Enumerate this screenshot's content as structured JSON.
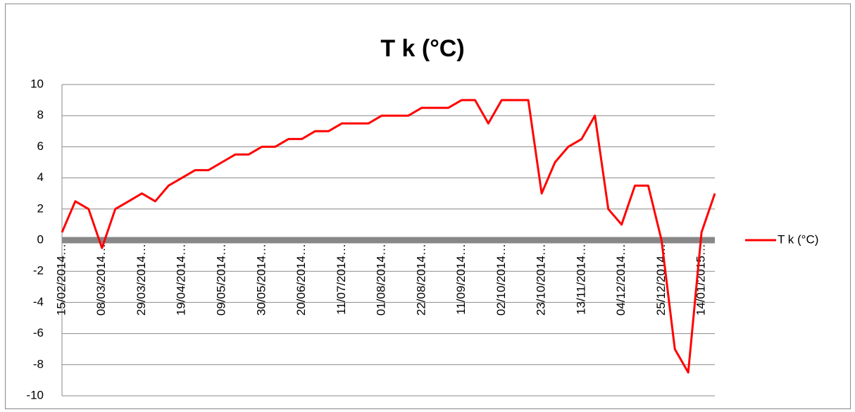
{
  "chart_data": {
    "type": "line",
    "title": "T k (°C)",
    "categories": [
      "15/02/2014…",
      null,
      null,
      "08/03/2014…",
      null,
      null,
      "29/03/2014…",
      null,
      null,
      "19/04/2014…",
      null,
      null,
      "09/05/2014…",
      null,
      null,
      "30/05/2014…",
      null,
      null,
      "20/06/2014…",
      null,
      null,
      "11/07/2014…",
      null,
      null,
      "01/08/2014…",
      null,
      null,
      "22/08/2014…",
      null,
      null,
      "11/09/2014…",
      null,
      null,
      "02/10/2014…",
      null,
      null,
      "23/10/2014…",
      null,
      null,
      "13/11/2014…",
      null,
      null,
      "04/12/2014…",
      null,
      null,
      "25/12/2014…",
      null,
      null,
      "14/01/2015…",
      null
    ],
    "series": [
      {
        "name": "T k (°C)",
        "color": "#ff0000",
        "values": [
          0.5,
          2.5,
          2.0,
          -0.5,
          2.0,
          2.5,
          3.0,
          2.5,
          3.5,
          4.0,
          4.5,
          4.5,
          5.0,
          5.5,
          5.5,
          6.0,
          6.0,
          6.5,
          6.5,
          7.0,
          7.0,
          7.5,
          7.5,
          7.5,
          8.0,
          8.0,
          8.0,
          8.5,
          8.5,
          8.5,
          9.0,
          9.0,
          7.5,
          9.0,
          9.0,
          9.0,
          3.0,
          5.0,
          6.0,
          6.5,
          8.0,
          2.0,
          1.0,
          3.5,
          3.5,
          0.0,
          -7.0,
          -8.5,
          0.5,
          3.0
        ]
      }
    ],
    "ylim": [
      -10,
      10
    ],
    "yticks": [
      -10,
      -8,
      -6,
      -4,
      -2,
      0,
      2,
      4,
      6,
      8,
      10
    ],
    "grid": true,
    "legend": "right"
  }
}
